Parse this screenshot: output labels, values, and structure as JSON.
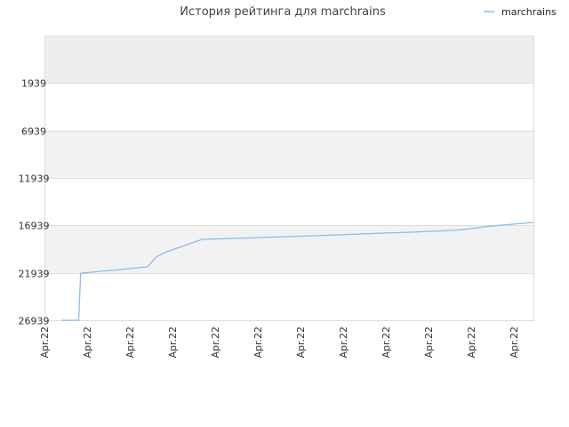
{
  "chart_data": {
    "type": "line",
    "title": "История рейтинга для marchrains",
    "legend": {
      "label": "marchrains",
      "position": "top-right"
    },
    "xlabel": "",
    "ylabel": "",
    "y_inverted": true,
    "ylim": [
      -3061,
      26939
    ],
    "y_ticks": [
      "1939",
      "6939",
      "11939",
      "16939",
      "21939",
      "26939"
    ],
    "x_tick_labels": [
      "Apr.22",
      "Apr.22",
      "Apr.22",
      "Apr.22",
      "Apr.22",
      "Apr.22",
      "Apr.22",
      "Apr.22",
      "Apr.22",
      "Apr.22",
      "Apr.22",
      "Apr.22"
    ],
    "grid": true,
    "colors": {
      "line": "#8dbdea",
      "band": "#f2f2f2",
      "band_top": "#eeeeee",
      "grid": "#dddddd"
    },
    "series": [
      {
        "name": "marchrains",
        "x": [
          0.036,
          0.07,
          0.074,
          0.143,
          0.211,
          0.229,
          0.25,
          0.322,
          0.345,
          0.41,
          0.47,
          0.56,
          0.66,
          0.75,
          0.84,
          0.86,
          0.91,
          1.0
        ],
        "y": [
          26939,
          26939,
          21980,
          21650,
          21300,
          20250,
          19720,
          18420,
          18380,
          18280,
          18170,
          18020,
          17820,
          17660,
          17460,
          17360,
          17030,
          16630
        ]
      }
    ]
  }
}
